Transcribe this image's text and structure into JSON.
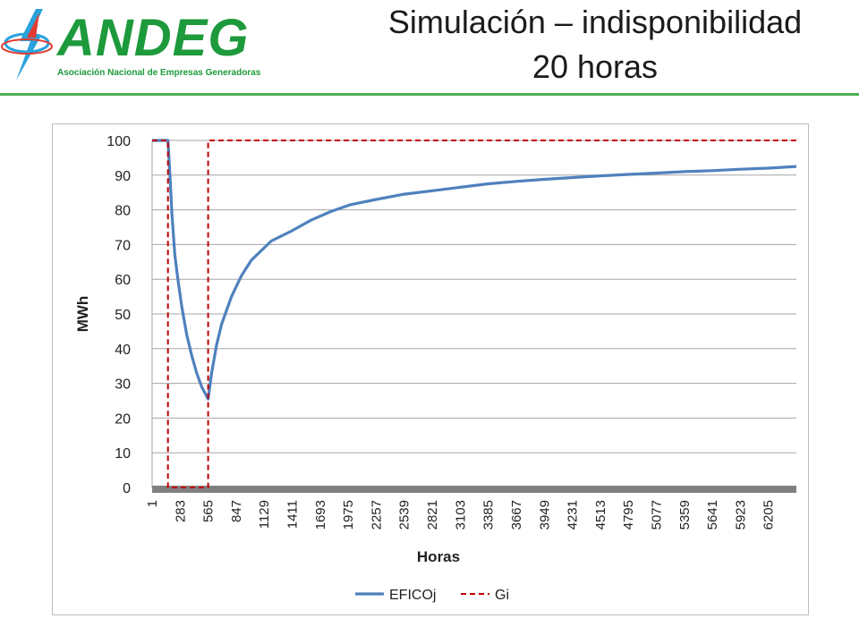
{
  "header": {
    "logo_name": "ANDEG",
    "logo_subtitle": "Asociación Nacional de Empresas Generadoras",
    "title_line1": "Simulación – indisponibilidad",
    "title_line2": "20 horas"
  },
  "colors": {
    "brand_green": "#1d9a3c",
    "series_eficoj": "#4f81bd",
    "series_gi": "#c00000",
    "grid": "#a6a6a6",
    "zero_axis": "#808080"
  },
  "chart_data": {
    "type": "line",
    "title": "",
    "xlabel": "Horas",
    "ylabel": "MWh",
    "xlim": [
      1,
      6487
    ],
    "ylim": [
      0,
      100
    ],
    "y_ticks": [
      0,
      10,
      20,
      30,
      40,
      50,
      60,
      70,
      80,
      90,
      100
    ],
    "x_ticks": [
      1,
      283,
      565,
      847,
      1129,
      1411,
      1693,
      1975,
      2257,
      2539,
      2821,
      3103,
      3385,
      3667,
      3949,
      4231,
      4513,
      4795,
      5077,
      5359,
      5641,
      5923,
      6205
    ],
    "grid": true,
    "legend_position": "bottom",
    "series": [
      {
        "name": "EFICOj",
        "style": "solid",
        "x": [
          1,
          150,
          160,
          180,
          200,
          230,
          260,
          300,
          350,
          400,
          450,
          500,
          565,
          565,
          600,
          650,
          700,
          800,
          900,
          1000,
          1200,
          1411,
          1600,
          1800,
          2000,
          2257,
          2539,
          2821,
          3103,
          3385,
          3667,
          3949,
          4231,
          4513,
          4795,
          5077,
          5359,
          5641,
          5923,
          6205,
          6487
        ],
        "y": [
          100,
          100,
          100,
          90,
          79,
          67,
          60,
          52,
          44,
          38,
          33,
          29,
          25.5,
          25.5,
          33,
          41,
          47,
          55,
          61,
          65.5,
          71,
          74,
          77,
          79.5,
          81.5,
          83,
          84.5,
          85.5,
          86.5,
          87.5,
          88.2,
          88.8,
          89.3,
          89.8,
          90.2,
          90.6,
          91,
          91.3,
          91.7,
          92,
          92.5
        ]
      },
      {
        "name": "Gi",
        "style": "dashed",
        "x": [
          1,
          160,
          160,
          565,
          565,
          6487
        ],
        "y": [
          100,
          100,
          0,
          0,
          100,
          100
        ]
      }
    ]
  }
}
